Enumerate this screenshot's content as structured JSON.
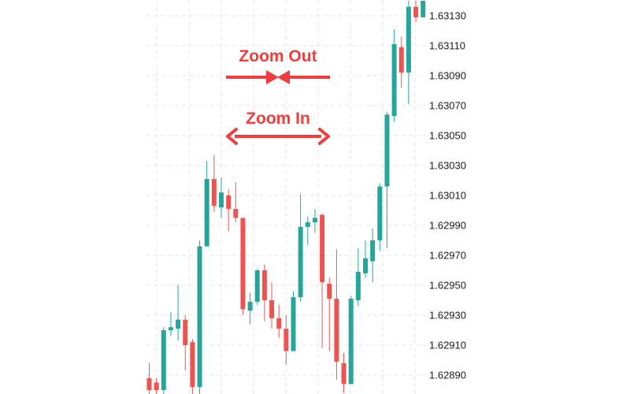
{
  "chart_data": {
    "type": "candlestick",
    "title": "",
    "xlabel": "",
    "ylabel": "",
    "grid": true,
    "colors": {
      "up": "#26a69a",
      "down": "#ef5350",
      "grid": "#e6e6e6",
      "annotation": "#f23b3b"
    },
    "y_ticks": [
      "1.63130",
      "1.63110",
      "1.63090",
      "1.63070",
      "1.63050",
      "1.63030",
      "1.63010",
      "1.62990",
      "1.62970",
      "1.62950",
      "1.62930",
      "1.62910",
      "1.62890"
    ],
    "ylim": [
      1.6288,
      1.6314
    ],
    "candles": [
      {
        "open": 1.62888,
        "close": 1.6288,
        "high": 1.62898,
        "low": 1.62876
      },
      {
        "open": 1.62885,
        "close": 1.6288,
        "high": 1.62888,
        "low": 1.62876
      },
      {
        "open": 1.6288,
        "close": 1.6292,
        "high": 1.62922,
        "low": 1.62876
      },
      {
        "open": 1.6292,
        "close": 1.62922,
        "high": 1.62932,
        "low": 1.62916
      },
      {
        "open": 1.62921,
        "close": 1.62927,
        "high": 1.6295,
        "low": 1.62913
      },
      {
        "open": 1.62927,
        "close": 1.6291,
        "high": 1.6293,
        "low": 1.62893
      },
      {
        "open": 1.62912,
        "close": 1.62882,
        "high": 1.62914,
        "low": 1.62876
      },
      {
        "open": 1.62882,
        "close": 1.62976,
        "high": 1.6298,
        "low": 1.62876
      },
      {
        "open": 1.62976,
        "close": 1.63021,
        "high": 1.63033,
        "low": 1.62976
      },
      {
        "open": 1.63021,
        "close": 1.63003,
        "high": 1.63037,
        "low": 1.62999
      },
      {
        "open": 1.63002,
        "close": 1.63012,
        "high": 1.63022,
        "low": 1.62995
      },
      {
        "open": 1.6301,
        "close": 1.63001,
        "high": 1.63014,
        "low": 1.62986
      },
      {
        "open": 1.63001,
        "close": 1.62995,
        "high": 1.63019,
        "low": 1.62992
      },
      {
        "open": 1.62995,
        "close": 1.62934,
        "high": 1.62995,
        "low": 1.6293
      },
      {
        "open": 1.62933,
        "close": 1.62939,
        "high": 1.62945,
        "low": 1.62924
      },
      {
        "open": 1.62939,
        "close": 1.6296,
        "high": 1.62961,
        "low": 1.62937
      },
      {
        "open": 1.6296,
        "close": 1.6294,
        "high": 1.62964,
        "low": 1.62926
      },
      {
        "open": 1.6294,
        "close": 1.62928,
        "high": 1.62952,
        "low": 1.62921
      },
      {
        "open": 1.62928,
        "close": 1.62921,
        "high": 1.62937,
        "low": 1.62915
      },
      {
        "open": 1.62921,
        "close": 1.62906,
        "high": 1.6293,
        "low": 1.62897
      },
      {
        "open": 1.62906,
        "close": 1.62942,
        "high": 1.62946,
        "low": 1.62906
      },
      {
        "open": 1.62942,
        "close": 1.62989,
        "high": 1.63011,
        "low": 1.62939
      },
      {
        "open": 1.62989,
        "close": 1.62992,
        "high": 1.62996,
        "low": 1.62977
      },
      {
        "open": 1.62992,
        "close": 1.62995,
        "high": 1.63001,
        "low": 1.62985
      },
      {
        "open": 1.62997,
        "close": 1.62952,
        "high": 1.62998,
        "low": 1.62908
      },
      {
        "open": 1.62951,
        "close": 1.62941,
        "high": 1.62955,
        "low": 1.62906
      },
      {
        "open": 1.62941,
        "close": 1.62899,
        "high": 1.62974,
        "low": 1.62887
      },
      {
        "open": 1.62898,
        "close": 1.62884,
        "high": 1.62905,
        "low": 1.62878
      },
      {
        "open": 1.62884,
        "close": 1.62941,
        "high": 1.62943,
        "low": 1.62884
      },
      {
        "open": 1.6294,
        "close": 1.62959,
        "high": 1.62975,
        "low": 1.62936
      },
      {
        "open": 1.62958,
        "close": 1.62968,
        "high": 1.6298,
        "low": 1.62955
      },
      {
        "open": 1.62966,
        "close": 1.6298,
        "high": 1.62988,
        "low": 1.62952
      },
      {
        "open": 1.6298,
        "close": 1.63016,
        "high": 1.63018,
        "low": 1.62973
      },
      {
        "open": 1.63016,
        "close": 1.63064,
        "high": 1.63066,
        "low": 1.62975
      },
      {
        "open": 1.63063,
        "close": 1.63111,
        "high": 1.63121,
        "low": 1.63059
      },
      {
        "open": 1.63109,
        "close": 1.63092,
        "high": 1.63116,
        "low": 1.63082
      },
      {
        "open": 1.63092,
        "close": 1.63136,
        "high": 1.6314,
        "low": 1.63071
      },
      {
        "open": 1.63136,
        "close": 1.63129,
        "high": 1.6314,
        "low": 1.63126
      },
      {
        "open": 1.63129,
        "close": 1.6314,
        "high": 1.6314,
        "low": 1.63129
      }
    ],
    "annotations": [
      {
        "label": "Zoom Out",
        "arrow": "inward"
      },
      {
        "label": "Zoom In",
        "arrow": "outward"
      }
    ]
  }
}
